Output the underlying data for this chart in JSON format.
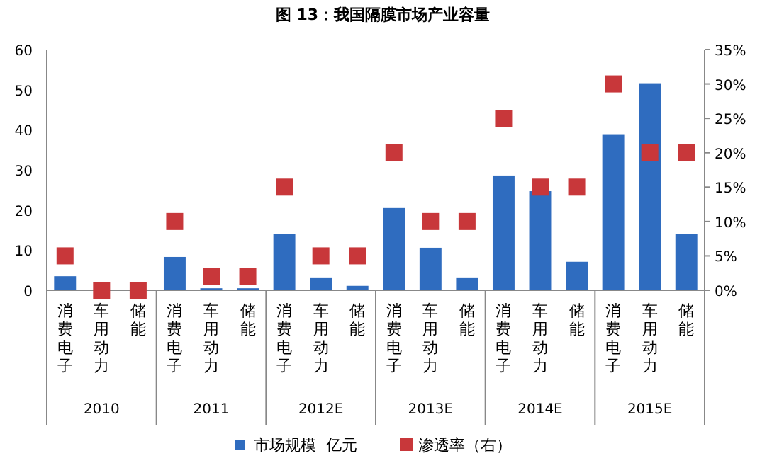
{
  "chart_data": {
    "type": "bar",
    "title": "图 13：我国隔膜市场产业容量",
    "categories": [
      "消费电子",
      "车用动力",
      "储能",
      "消费电子",
      "车用动力",
      "储能",
      "消费电子",
      "车用动力",
      "储能",
      "消费电子",
      "车用动力",
      "储能",
      "消费电子",
      "车用动力",
      "储能",
      "消费电子",
      "车用动力",
      "储能"
    ],
    "annotations": [
      "2010",
      "2011",
      "2012E",
      "2013E",
      "2014E",
      "2015E"
    ],
    "series": [
      {
        "name": "市场规模  亿元",
        "color": "#2f6cbf",
        "values": [
          3.5,
          0,
          0,
          8.3,
          0.5,
          0.5,
          14,
          3.2,
          1.1,
          20.5,
          10.6,
          3.2,
          28.6,
          24.7,
          7.1,
          38.9,
          51.6,
          14.1
        ]
      },
      {
        "name": "渗透率（右）",
        "type": "scatter",
        "axis": "y2",
        "color": "#c8373a",
        "values": [
          5,
          0,
          0,
          10,
          2,
          2,
          15,
          5,
          5,
          20,
          10,
          10,
          25,
          15,
          15,
          30,
          20,
          20
        ]
      }
    ],
    "marker": "square",
    "ylim": [
      0,
      60
    ],
    "yticks": [
      0,
      10,
      20,
      30,
      40,
      50,
      60
    ],
    "y2lim": [
      0,
      35
    ],
    "y2ticks": [
      {
        "value": 0,
        "label": "0%"
      },
      {
        "value": 5,
        "label": "5%"
      },
      {
        "value": 10,
        "label": "10%"
      },
      {
        "value": 15,
        "label": "15%"
      },
      {
        "value": 20,
        "label": "20%"
      },
      {
        "value": 25,
        "label": "25%"
      },
      {
        "value": 30,
        "label": "30%"
      },
      {
        "value": 35,
        "label": "35%"
      }
    ],
    "grid": false,
    "legend": "bottom"
  }
}
